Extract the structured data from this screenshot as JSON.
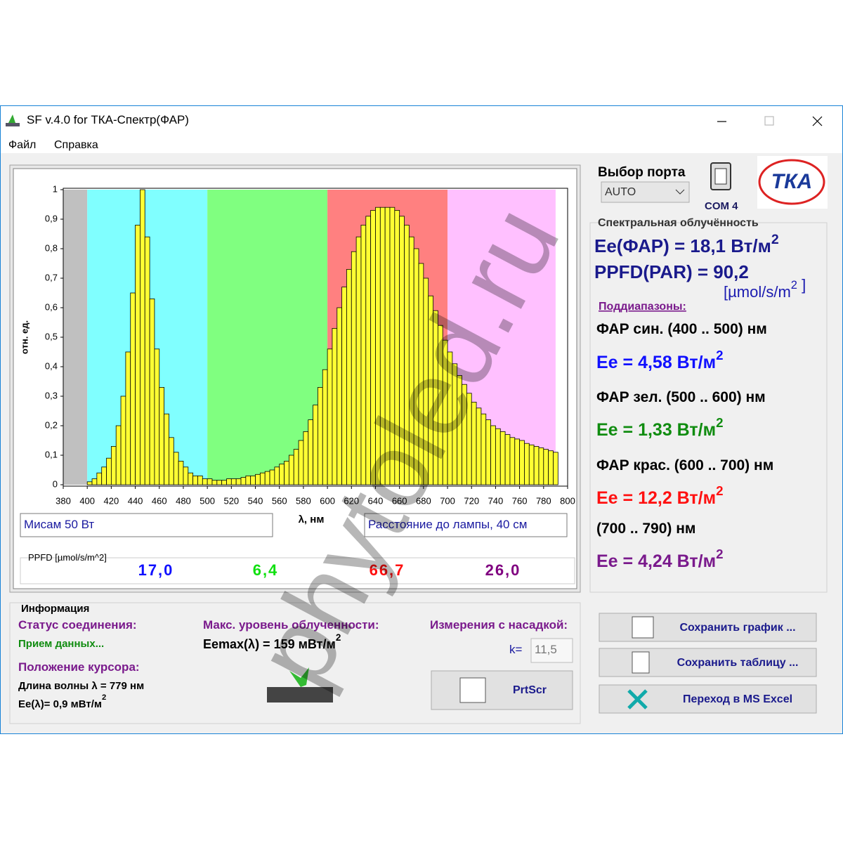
{
  "window": {
    "title": "SF v.4.0 for ТКА-Спектр(ФАР)"
  },
  "menu": [
    "Файл",
    "Справка"
  ],
  "chart_data": {
    "type": "bar",
    "ylabel": "отн. ед.",
    "xlabel": "λ, нм",
    "x": [
      400,
      404,
      408,
      412,
      416,
      420,
      424,
      428,
      432,
      436,
      440,
      444,
      448,
      452,
      456,
      460,
      464,
      468,
      472,
      476,
      480,
      484,
      488,
      492,
      496,
      500,
      504,
      508,
      512,
      516,
      520,
      524,
      528,
      532,
      536,
      540,
      544,
      548,
      552,
      556,
      560,
      564,
      568,
      572,
      576,
      580,
      584,
      588,
      592,
      596,
      600,
      604,
      608,
      612,
      616,
      620,
      624,
      628,
      632,
      636,
      640,
      644,
      648,
      652,
      656,
      660,
      664,
      668,
      672,
      676,
      680,
      684,
      688,
      692,
      696,
      700,
      704,
      708,
      712,
      716,
      720,
      724,
      728,
      732,
      736,
      740,
      744,
      748,
      752,
      756,
      760,
      764,
      768,
      772,
      776,
      780,
      784,
      788
    ],
    "values": [
      0.01,
      0.02,
      0.04,
      0.06,
      0.09,
      0.13,
      0.2,
      0.3,
      0.45,
      0.65,
      0.88,
      1.0,
      0.84,
      0.63,
      0.46,
      0.33,
      0.24,
      0.16,
      0.11,
      0.08,
      0.06,
      0.04,
      0.03,
      0.03,
      0.02,
      0.02,
      0.015,
      0.015,
      0.015,
      0.02,
      0.02,
      0.02,
      0.025,
      0.03,
      0.03,
      0.035,
      0.04,
      0.045,
      0.05,
      0.06,
      0.07,
      0.08,
      0.1,
      0.12,
      0.15,
      0.18,
      0.22,
      0.27,
      0.33,
      0.39,
      0.46,
      0.53,
      0.6,
      0.67,
      0.73,
      0.79,
      0.84,
      0.88,
      0.91,
      0.93,
      0.94,
      0.94,
      0.94,
      0.94,
      0.93,
      0.91,
      0.88,
      0.84,
      0.8,
      0.75,
      0.7,
      0.64,
      0.59,
      0.54,
      0.49,
      0.45,
      0.41,
      0.37,
      0.34,
      0.31,
      0.28,
      0.26,
      0.24,
      0.22,
      0.2,
      0.19,
      0.18,
      0.17,
      0.16,
      0.155,
      0.15,
      0.14,
      0.135,
      0.13,
      0.125,
      0.12,
      0.115,
      0.11
    ],
    "bar_width": 4,
    "color": "#ffff33",
    "edgecolor": "#000000",
    "bands": [
      {
        "from": 380,
        "to": 400,
        "color": "#c0c0c0"
      },
      {
        "from": 400,
        "to": 500,
        "color": "#80ffff"
      },
      {
        "from": 500,
        "to": 600,
        "color": "#80ff80"
      },
      {
        "from": 600,
        "to": 700,
        "color": "#ff8080"
      },
      {
        "from": 700,
        "to": 790,
        "color": "#ffc0ff"
      }
    ],
    "xlim": [
      380,
      800
    ],
    "ylim": [
      0,
      1
    ],
    "xticks": [
      380,
      400,
      420,
      440,
      460,
      480,
      500,
      520,
      540,
      560,
      580,
      600,
      620,
      640,
      660,
      680,
      700,
      720,
      740,
      760,
      780,
      800
    ],
    "yticks": [
      0,
      {
        "value": 0.1,
        "label": "0,1"
      },
      {
        "value": 0.2,
        "label": "0,2"
      },
      {
        "value": 0.3,
        "label": "0,3"
      },
      {
        "value": 0.4,
        "label": "0,4"
      },
      {
        "value": 0.5,
        "label": "0,5"
      },
      {
        "value": 0.6,
        "label": "0,6"
      },
      {
        "value": 0.7,
        "label": "0,7"
      },
      {
        "value": 0.8,
        "label": "0,8"
      },
      {
        "value": 0.9,
        "label": "0,9"
      },
      1
    ]
  },
  "inputs": {
    "lamp": "Мисам 50 Вт",
    "distance": "Расстояние до лампы, 40 см"
  },
  "ppfd": {
    "label": "PPFD [µmol/s/m^2]",
    "values": [
      {
        "text": "17,0",
        "color": "#1010ff"
      },
      {
        "text": "6,4",
        "color": "#10e010"
      },
      {
        "text": "66,7",
        "color": "#ff1010"
      },
      {
        "text": "26,0",
        "color": "#800080"
      }
    ]
  },
  "port": {
    "label": "Выбор порта",
    "value": "AUTO",
    "com": "COM  4"
  },
  "logo": "ТКА",
  "irradiance": {
    "title": "Спектральная облучённость",
    "ee": [
      "Ee(ФАР) = 18,1 Вт/м",
      "2"
    ],
    "ppfd": "PPFD(PAR) = 90,2",
    "ppfd_unit": [
      "[µmol/s/m",
      "2",
      " ]"
    ],
    "subranges_title": "Поддиапазоны:",
    "subranges": [
      {
        "label": "ФАР син. (400 .. 500) нм",
        "ee": [
          "Ee = 4,58 Вт/м",
          "2"
        ],
        "color": "#1010ff"
      },
      {
        "label": "ФАР зел. (500 .. 600) нм",
        "ee": [
          "Ee = 1,33 Вт/м",
          "2"
        ],
        "color": "#108c10"
      },
      {
        "label": "ФАР крас. (600 .. 700) нм",
        "ee": [
          "Ee = 12,2 Вт/м",
          "2"
        ],
        "color": "#ff1010"
      },
      {
        "label": "(700 .. 790) нм",
        "ee": [
          "Ee = 4,24 Вт/м",
          "2"
        ],
        "color": "#7a1a8c"
      }
    ]
  },
  "info": {
    "title": "Информация",
    "status_label": "Статус соединения:",
    "status": "Прием данных...",
    "cursor_label": "Положение курсора:",
    "wavelength": [
      "Длина волны ",
      "λ",
      " = 779 нм"
    ],
    "ee_cursor": [
      "Ee(",
      "λ",
      ")= 0,9 мВт/м",
      "2"
    ],
    "max_label": "Макс. уровень облученности:",
    "eemax": [
      "Eemax(",
      "λ",
      ") = 159 мВт/м",
      "2"
    ],
    "attachment_label": "Измерения с насадкой:",
    "k_label": "k=",
    "k_value": "11,5"
  },
  "buttons": [
    "Сохранить график ...",
    "Сохранить таблицу ...",
    "Переход в MS Excel"
  ],
  "prtscr": "PrtScr",
  "watermark": "phytoled.ru"
}
